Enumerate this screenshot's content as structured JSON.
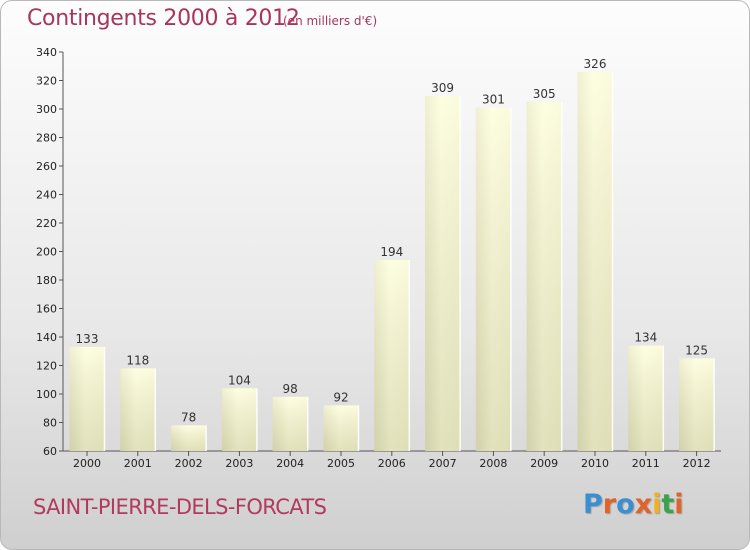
{
  "title": "Contingents 2000 à 2012",
  "subtitle": "(en milliers d'€)",
  "commune": "SAINT-PIERRE-DELS-FORCATS",
  "logo": {
    "text": "Proxiti",
    "colors": [
      "#3a8fd0",
      "#e0632a",
      "#3a8fd0",
      "#e0632a",
      "#f0b020",
      "#3aa24a",
      "#e0632a"
    ]
  },
  "colors": {
    "title": "#a8355e",
    "bar_light": "#fbfbd8",
    "bar_dark": "#d8d8b0"
  },
  "chart_data": {
    "type": "bar",
    "title": "Contingents 2000 à 2012",
    "subtitle": "(en milliers d'€)",
    "categories": [
      "2000",
      "2001",
      "2002",
      "2003",
      "2004",
      "2005",
      "2006",
      "2007",
      "2008",
      "2009",
      "2010",
      "2011",
      "2012"
    ],
    "values": [
      133,
      118,
      78,
      104,
      98,
      92,
      194,
      309,
      301,
      305,
      326,
      134,
      125
    ],
    "ylim": [
      60,
      340
    ],
    "yticks": [
      60,
      80,
      100,
      120,
      140,
      160,
      180,
      200,
      220,
      240,
      260,
      280,
      300,
      320,
      340
    ],
    "grid": false
  }
}
